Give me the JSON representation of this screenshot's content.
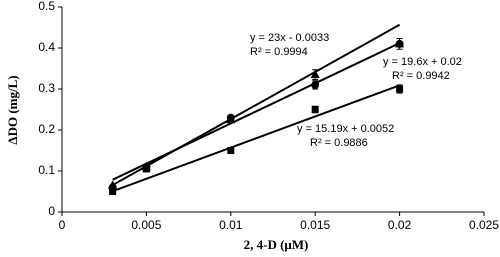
{
  "chart_data": {
    "type": "scatter",
    "x_label": "2, 4-D (μM)",
    "y_label": "ΔDO (mg/L)",
    "xlim": [
      0,
      0.025
    ],
    "xticks": [
      0,
      0.005,
      0.01,
      0.015,
      0.02,
      0.025
    ],
    "ylim": [
      0,
      0.5
    ],
    "yticks": [
      0,
      0.1,
      0.2,
      0.3,
      0.4,
      0.5
    ],
    "grid": false,
    "series": [
      {
        "marker": "triangle",
        "color": "#000000",
        "x": [
          0.003,
          0.005,
          0.01,
          0.015,
          0.02
        ],
        "values": [
          0.065,
          0.11,
          0.225,
          0.335,
          0.41
        ],
        "errors": [
          0,
          0,
          0,
          0.012,
          0
        ],
        "fit": {
          "slope": 23,
          "intercept": -0.0033
        }
      },
      {
        "marker": "circle",
        "color": "#000000",
        "x": [
          0.003,
          0.005,
          0.01,
          0.015,
          0.02
        ],
        "values": [
          0.06,
          0.11,
          0.23,
          0.31,
          0.41
        ],
        "errors": [
          0,
          0,
          0.006,
          0.01,
          0.013
        ],
        "fit": {
          "slope": 19.6,
          "intercept": 0.02
        }
      },
      {
        "marker": "square",
        "color": "#000000",
        "x": [
          0.003,
          0.005,
          0.01,
          0.015,
          0.02
        ],
        "values": [
          0.05,
          0.105,
          0.15,
          0.25,
          0.3
        ],
        "errors": [
          0,
          0,
          0,
          0.008,
          0.01
        ],
        "fit": {
          "slope": 15.19,
          "intercept": 0.0052
        }
      }
    ],
    "annotations": [
      "y = 23x - 0.0033",
      "R² = 0.9994",
      "y = 19.6x + 0.02",
      "R² = 0.9942",
      "y = 15.19x + 0.0052",
      "R² = 0.9886"
    ]
  }
}
